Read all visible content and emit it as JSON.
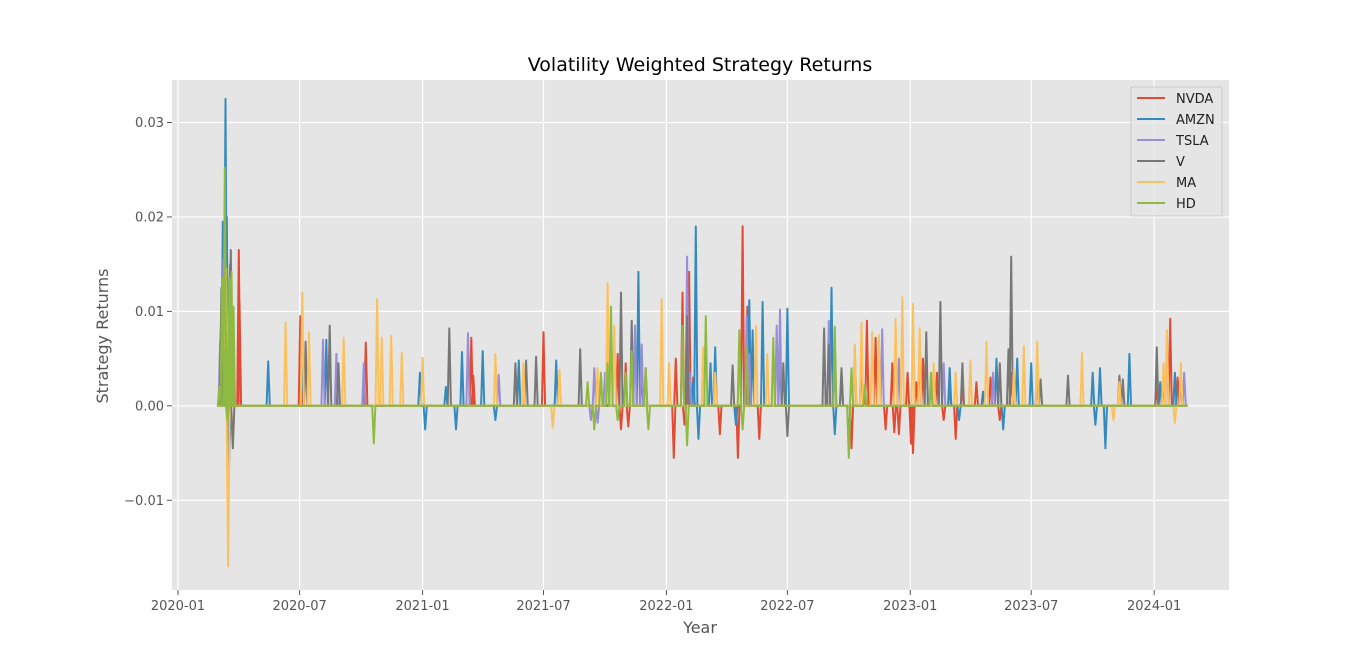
{
  "chart_data": {
    "type": "line",
    "title": "Volatility Weighted Strategy Returns",
    "xlabel": "Year",
    "ylabel": "Strategy Returns",
    "x_start": "2020-03-02",
    "x_end": "2024-02-20",
    "xlim": [
      "2019-12-23",
      "2024-04-22"
    ],
    "ylim": [
      -0.0195,
      0.0345
    ],
    "x_ticks": [
      "2020-01",
      "2020-07",
      "2021-01",
      "2021-07",
      "2022-01",
      "2022-07",
      "2023-01",
      "2023-07",
      "2024-01"
    ],
    "y_ticks": [
      -0.01,
      0.0,
      0.01,
      0.02,
      0.03
    ],
    "y_tick_labels": [
      "−0.01",
      "0.00",
      "0.01",
      "0.02",
      "0.03"
    ],
    "grid": true,
    "legend_position": "top-right",
    "series": [
      {
        "name": "NVDA",
        "color": "#E24A33",
        "spikes": [
          [
            "2020-03-11",
            0.012
          ],
          [
            "2020-03-18",
            -0.004
          ],
          [
            "2020-04-01",
            0.0165
          ],
          [
            "2020-04-02",
            0.011
          ],
          [
            "2020-07-02",
            0.0095
          ],
          [
            "2020-10-08",
            0.0067
          ],
          [
            "2021-03-15",
            0.0072
          ],
          [
            "2021-03-18",
            0.0032
          ],
          [
            "2021-07-01",
            0.0078
          ],
          [
            "2021-10-20",
            0.0055
          ],
          [
            "2021-10-25",
            -0.0025
          ],
          [
            "2021-11-01",
            0.0045
          ],
          [
            "2021-11-05",
            -0.0022
          ],
          [
            "2022-01-12",
            -0.0055
          ],
          [
            "2022-01-15",
            0.005
          ],
          [
            "2022-01-25",
            0.012
          ],
          [
            "2022-01-28",
            -0.002
          ],
          [
            "2022-02-04",
            0.0142
          ],
          [
            "2022-02-10",
            0.003
          ],
          [
            "2022-03-22",
            -0.003
          ],
          [
            "2022-04-18",
            -0.0055
          ],
          [
            "2022-04-25",
            0.019
          ],
          [
            "2022-05-02",
            0.0105
          ],
          [
            "2022-05-20",
            -0.0035
          ],
          [
            "2022-09-20",
            0.0035
          ],
          [
            "2022-10-05",
            -0.0045
          ],
          [
            "2022-10-20",
            0.0065
          ],
          [
            "2022-10-28",
            0.009
          ],
          [
            "2022-11-10",
            0.0072
          ],
          [
            "2022-11-25",
            -0.0025
          ],
          [
            "2022-12-05",
            0.0045
          ],
          [
            "2022-12-08",
            -0.0028
          ],
          [
            "2022-12-15",
            -0.003
          ],
          [
            "2022-12-28",
            0.0035
          ],
          [
            "2023-01-02",
            -0.004
          ],
          [
            "2023-01-05",
            -0.005
          ],
          [
            "2023-01-10",
            0.0025
          ],
          [
            "2023-01-20",
            0.005
          ],
          [
            "2023-02-10",
            0.0035
          ],
          [
            "2023-02-20",
            -0.0015
          ],
          [
            "2023-03-01",
            0.002
          ],
          [
            "2023-03-10",
            -0.0035
          ],
          [
            "2023-03-20",
            0.002
          ],
          [
            "2023-04-10",
            0.0025
          ],
          [
            "2023-04-20",
            0.0015
          ],
          [
            "2023-05-01",
            0.003
          ],
          [
            "2023-05-15",
            -0.0015
          ],
          [
            "2023-06-01",
            0.0035
          ],
          [
            "2024-01-05",
            0.002
          ],
          [
            "2024-01-25",
            0.0092
          ],
          [
            "2024-02-05",
            0.003
          ]
        ]
      },
      {
        "name": "AMZN",
        "color": "#348ABD",
        "spikes": [
          [
            "2020-03-05",
            0.008
          ],
          [
            "2020-03-08",
            0.0195
          ],
          [
            "2020-03-10",
            0.018
          ],
          [
            "2020-03-12",
            0.0325
          ],
          [
            "2020-03-14",
            0.02
          ],
          [
            "2020-03-17",
            -0.0075
          ],
          [
            "2020-03-19",
            0.015
          ],
          [
            "2020-03-21",
            0.009
          ],
          [
            "2020-05-15",
            0.0047
          ],
          [
            "2020-07-05",
            0.0055
          ],
          [
            "2020-08-10",
            0.007
          ],
          [
            "2020-12-28",
            0.0035
          ],
          [
            "2021-01-05",
            -0.0025
          ],
          [
            "2021-02-05",
            0.002
          ],
          [
            "2021-02-20",
            -0.0025
          ],
          [
            "2021-03-01",
            0.0057
          ],
          [
            "2021-04-01",
            0.0058
          ],
          [
            "2021-04-20",
            -0.0015
          ],
          [
            "2021-05-25",
            0.0048
          ],
          [
            "2021-07-20",
            0.0048
          ],
          [
            "2021-11-20",
            0.0142
          ],
          [
            "2021-11-25",
            0.0035
          ],
          [
            "2022-02-10",
            0.0025
          ],
          [
            "2022-02-14",
            0.019
          ],
          [
            "2022-02-18",
            -0.0035
          ],
          [
            "2022-03-08",
            0.0045
          ],
          [
            "2022-03-15",
            0.0062
          ],
          [
            "2022-04-15",
            -0.002
          ],
          [
            "2022-05-05",
            0.0112
          ],
          [
            "2022-05-10",
            0.008
          ],
          [
            "2022-05-25",
            0.011
          ],
          [
            "2022-06-20",
            0.006
          ],
          [
            "2022-07-01",
            0.0103
          ],
          [
            "2022-09-05",
            0.0125
          ],
          [
            "2022-09-10",
            -0.003
          ],
          [
            "2023-01-15",
            0.0065
          ],
          [
            "2023-02-01",
            0.003
          ],
          [
            "2023-03-01",
            0.004
          ],
          [
            "2023-03-15",
            -0.0015
          ],
          [
            "2023-04-20",
            0.0015
          ],
          [
            "2023-05-10",
            0.005
          ],
          [
            "2023-05-20",
            -0.0025
          ],
          [
            "2023-06-10",
            0.005
          ],
          [
            "2023-07-01",
            0.0045
          ],
          [
            "2023-10-01",
            0.0035
          ],
          [
            "2023-10-05",
            -0.002
          ],
          [
            "2023-10-12",
            0.004
          ],
          [
            "2023-10-20",
            -0.0045
          ],
          [
            "2023-11-25",
            0.0055
          ],
          [
            "2024-01-10",
            0.0025
          ],
          [
            "2024-02-01",
            0.0035
          ]
        ]
      },
      {
        "name": "TSLA",
        "color": "#988ED5",
        "spikes": [
          [
            "2020-03-04",
            0.0068
          ],
          [
            "2020-03-09",
            0.0155
          ],
          [
            "2020-03-15",
            0.008
          ],
          [
            "2020-08-05",
            0.007
          ],
          [
            "2020-08-25",
            0.0055
          ],
          [
            "2020-10-05",
            0.0045
          ],
          [
            "2021-03-10",
            0.0077
          ],
          [
            "2021-04-25",
            0.0033
          ],
          [
            "2021-09-10",
            -0.0015
          ],
          [
            "2021-09-15",
            0.004
          ],
          [
            "2021-09-20",
            -0.0018
          ],
          [
            "2021-10-01",
            0.0035
          ],
          [
            "2021-11-15",
            0.0085
          ],
          [
            "2021-11-25",
            0.0065
          ],
          [
            "2021-12-01",
            0.004
          ],
          [
            "2022-02-01",
            0.0158
          ],
          [
            "2022-02-05",
            0.0035
          ],
          [
            "2022-05-01",
            0.0095
          ],
          [
            "2022-05-05",
            0.0055
          ],
          [
            "2022-06-15",
            0.0085
          ],
          [
            "2022-06-20",
            0.0102
          ],
          [
            "2022-09-01",
            0.009
          ],
          [
            "2022-09-10",
            0.0042
          ],
          [
            "2022-11-20",
            0.0081
          ],
          [
            "2022-12-15",
            0.005
          ],
          [
            "2023-02-20",
            0.0045
          ],
          [
            "2023-05-05",
            0.0035
          ],
          [
            "2023-07-10",
            0.0025
          ],
          [
            "2024-01-20",
            0.0065
          ],
          [
            "2024-02-15",
            0.0035
          ]
        ]
      },
      {
        "name": "V",
        "color": "#777777",
        "spikes": [
          [
            "2020-03-06",
            0.0125
          ],
          [
            "2020-03-20",
            0.0165
          ],
          [
            "2020-03-23",
            -0.0045
          ],
          [
            "2020-07-10",
            0.0068
          ],
          [
            "2020-08-15",
            0.0085
          ],
          [
            "2020-08-28",
            0.0045
          ],
          [
            "2021-02-10",
            0.0082
          ],
          [
            "2021-05-20",
            0.0045
          ],
          [
            "2021-06-05",
            0.0048
          ],
          [
            "2021-06-20",
            0.0052
          ],
          [
            "2021-08-25",
            0.006
          ],
          [
            "2021-10-25",
            0.012
          ],
          [
            "2021-11-10",
            0.009
          ],
          [
            "2022-02-01",
            0.0095
          ],
          [
            "2022-04-10",
            0.0043
          ],
          [
            "2022-06-25",
            0.0045
          ],
          [
            "2022-07-01",
            -0.0032
          ],
          [
            "2022-08-25",
            0.0082
          ],
          [
            "2022-09-01",
            0.0065
          ],
          [
            "2022-09-20",
            0.004
          ],
          [
            "2022-10-01",
            -0.004
          ],
          [
            "2022-10-10",
            0.006
          ],
          [
            "2023-01-25",
            0.0078
          ],
          [
            "2023-02-15",
            0.011
          ],
          [
            "2023-03-20",
            0.0045
          ],
          [
            "2023-05-15",
            0.0045
          ],
          [
            "2023-05-28",
            0.006
          ],
          [
            "2023-06-01",
            0.0158
          ],
          [
            "2023-07-15",
            0.0028
          ],
          [
            "2023-08-25",
            0.0032
          ],
          [
            "2023-11-10",
            0.0032
          ],
          [
            "2023-11-15",
            0.0028
          ],
          [
            "2024-01-05",
            0.0062
          ],
          [
            "2024-01-15",
            0.0035
          ],
          [
            "2024-02-10",
            0.0025
          ]
        ]
      },
      {
        "name": "MA",
        "color": "#FBC15E",
        "spikes": [
          [
            "2020-03-13",
            0.0145
          ],
          [
            "2020-03-16",
            -0.017
          ],
          [
            "2020-03-22",
            0.008
          ],
          [
            "2020-06-10",
            0.0088
          ],
          [
            "2020-07-05",
            0.012
          ],
          [
            "2020-07-15",
            0.0078
          ],
          [
            "2020-09-05",
            0.0072
          ],
          [
            "2020-10-25",
            0.0113
          ],
          [
            "2020-11-01",
            0.0072
          ],
          [
            "2020-11-15",
            0.0074
          ],
          [
            "2020-12-01",
            0.0056
          ],
          [
            "2021-01-01",
            0.0051
          ],
          [
            "2021-04-20",
            0.0055
          ],
          [
            "2021-06-01",
            0.0045
          ],
          [
            "2021-07-15",
            -0.0023
          ],
          [
            "2021-07-25",
            0.0038
          ],
          [
            "2021-09-20",
            0.004
          ],
          [
            "2021-10-05",
            0.013
          ],
          [
            "2021-10-15",
            0.0085
          ],
          [
            "2021-12-25",
            0.0113
          ],
          [
            "2022-01-05",
            0.0045
          ],
          [
            "2022-02-25",
            0.0062
          ],
          [
            "2022-03-15",
            0.0035
          ],
          [
            "2022-04-20",
            0.0062
          ],
          [
            "2022-05-15",
            0.0085
          ],
          [
            "2022-06-01",
            0.0055
          ],
          [
            "2022-10-10",
            0.0065
          ],
          [
            "2022-10-20",
            0.0088
          ],
          [
            "2022-11-05",
            0.0078
          ],
          [
            "2022-11-15",
            0.0075
          ],
          [
            "2022-12-10",
            0.0092
          ],
          [
            "2022-12-20",
            0.0115
          ],
          [
            "2023-01-05",
            0.0108
          ],
          [
            "2023-01-15",
            0.0082
          ],
          [
            "2023-02-05",
            0.0045
          ],
          [
            "2023-03-10",
            0.0035
          ],
          [
            "2023-04-01",
            0.0048
          ],
          [
            "2023-04-25",
            0.0068
          ],
          [
            "2023-06-05",
            0.0038
          ],
          [
            "2023-06-20",
            0.0063
          ],
          [
            "2023-07-10",
            0.0068
          ],
          [
            "2023-09-15",
            0.0056
          ],
          [
            "2023-11-01",
            -0.0015
          ],
          [
            "2023-11-10",
            0.0025
          ],
          [
            "2024-01-15",
            0.0045
          ],
          [
            "2024-01-20",
            0.008
          ],
          [
            "2024-02-01",
            -0.0018
          ],
          [
            "2024-02-10",
            0.0045
          ]
        ]
      },
      {
        "name": "HD",
        "color": "#8EBA42",
        "spikes": [
          [
            "2020-03-03",
            0.002
          ],
          [
            "2020-03-07",
            0.0135
          ],
          [
            "2020-03-11",
            0.0252
          ],
          [
            "2020-03-13",
            0.008
          ],
          [
            "2020-03-15",
            -0.0015
          ],
          [
            "2020-03-18",
            0.0135
          ],
          [
            "2020-03-21",
            0.0142
          ],
          [
            "2020-03-24",
            0.0105
          ],
          [
            "2020-10-20",
            -0.004
          ],
          [
            "2021-09-05",
            0.0025
          ],
          [
            "2021-09-15",
            -0.0025
          ],
          [
            "2021-09-25",
            0.0035
          ],
          [
            "2021-10-05",
            0.0045
          ],
          [
            "2021-10-10",
            0.0105
          ],
          [
            "2021-10-20",
            -0.0015
          ],
          [
            "2021-11-01",
            0.0035
          ],
          [
            "2021-11-10",
            0.0058
          ],
          [
            "2021-12-01",
            0.004
          ],
          [
            "2021-12-05",
            -0.0025
          ],
          [
            "2022-01-25",
            0.0085
          ],
          [
            "2022-02-01",
            -0.0042
          ],
          [
            "2022-03-01",
            0.0095
          ],
          [
            "2022-04-20",
            0.008
          ],
          [
            "2022-04-25",
            -0.0025
          ],
          [
            "2022-05-01",
            0.0062
          ],
          [
            "2022-06-10",
            0.0072
          ],
          [
            "2022-09-10",
            0.0084
          ],
          [
            "2022-10-01",
            -0.0055
          ],
          [
            "2022-10-05",
            0.004
          ],
          [
            "2022-10-25",
            0.0022
          ],
          [
            "2023-02-01",
            0.0035
          ]
        ]
      }
    ]
  }
}
